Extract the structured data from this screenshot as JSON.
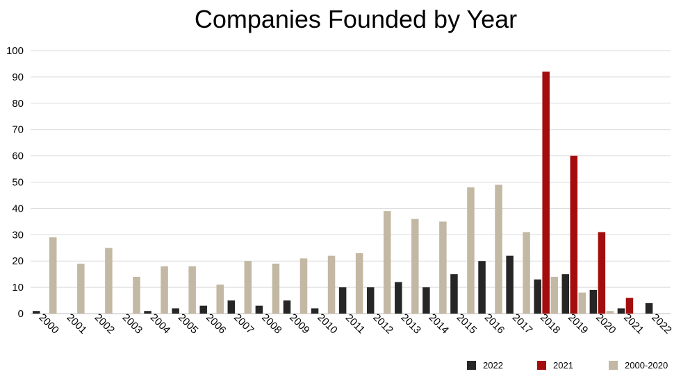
{
  "chart_data": {
    "type": "bar",
    "title": "Companies Founded by Year",
    "xlabel": "",
    "ylabel": "",
    "ylim": [
      0,
      100
    ],
    "yticks": [
      0,
      10,
      20,
      30,
      40,
      50,
      60,
      70,
      80,
      90,
      100
    ],
    "categories": [
      "2000",
      "2001",
      "2002",
      "2003",
      "2004",
      "2005",
      "2006",
      "2007",
      "2008",
      "2009",
      "2010",
      "2011",
      "2012",
      "2013",
      "2014",
      "2015",
      "2016",
      "2017",
      "2018",
      "2019",
      "2020",
      "2021",
      "2022"
    ],
    "grid": true,
    "legend_position": "bottom-right",
    "series": [
      {
        "name": "2022",
        "color": "#262626",
        "values": [
          1,
          0,
          0,
          0,
          1,
          2,
          3,
          5,
          3,
          5,
          2,
          10,
          10,
          12,
          10,
          15,
          20,
          22,
          13,
          15,
          9,
          2,
          4
        ]
      },
      {
        "name": "2021",
        "color": "#a30d0d",
        "values": [
          0,
          0,
          0,
          0,
          0,
          0,
          0,
          0,
          0,
          0,
          0,
          0,
          0,
          0,
          0,
          0,
          0,
          0,
          92,
          60,
          31,
          6,
          0
        ]
      },
      {
        "name": "2000-2020",
        "color": "#c2b8a3",
        "values": [
          29,
          19,
          25,
          14,
          18,
          18,
          11,
          20,
          19,
          21,
          22,
          23,
          39,
          36,
          35,
          48,
          49,
          31,
          14,
          8,
          1,
          0,
          0
        ]
      }
    ]
  }
}
